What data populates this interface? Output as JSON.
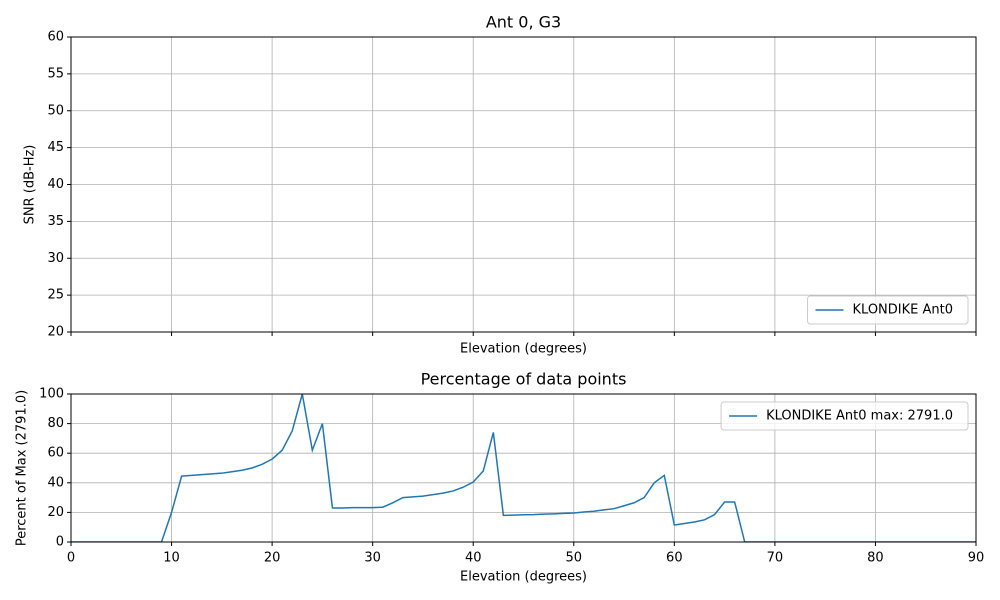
{
  "chart_data": [
    {
      "type": "line",
      "title": "Ant 0, G3",
      "xlabel": "Elevation (degrees)",
      "ylabel": "SNR (dB-Hz)",
      "x": [],
      "series": [
        {
          "name": "KLONDIKE Ant0",
          "color": "#1f77b4",
          "values": []
        }
      ],
      "xlim": [
        0,
        90
      ],
      "xticks": [
        0,
        10,
        20,
        30,
        40,
        50,
        60,
        70,
        80,
        90
      ],
      "xtick_labels": false,
      "ylim": [
        20,
        60
      ],
      "yticks": [
        20,
        25,
        30,
        35,
        40,
        45,
        50,
        55,
        60
      ],
      "grid": true,
      "legend": "lower right"
    },
    {
      "type": "line",
      "title": "Percentage of data points",
      "xlabel": "Elevation (degrees)",
      "ylabel": "Percent of Max (2791.0)",
      "x": [
        0,
        1,
        2,
        3,
        4,
        5,
        6,
        7,
        8,
        9,
        10,
        11,
        12,
        13,
        14,
        15,
        16,
        17,
        18,
        19,
        20,
        21,
        22,
        23,
        24,
        25,
        26,
        27,
        28,
        29,
        30,
        31,
        32,
        33,
        34,
        35,
        36,
        37,
        38,
        39,
        40,
        41,
        42,
        43,
        44,
        45,
        46,
        47,
        48,
        49,
        50,
        51,
        52,
        53,
        54,
        55,
        56,
        57,
        58,
        59,
        60,
        61,
        62,
        63,
        64,
        65,
        66,
        67,
        68,
        69,
        70,
        71,
        72,
        73,
        74,
        75,
        76,
        77,
        78,
        79,
        80,
        81,
        82,
        83,
        84,
        85,
        86,
        87,
        88,
        89,
        90
      ],
      "series": [
        {
          "name": "KLONDIKE Ant0 max: 2791.0",
          "color": "#1f77b4",
          "values": [
            0,
            0,
            0,
            0,
            0,
            0,
            0,
            0,
            0,
            0,
            20,
            44.5,
            45,
            45.5,
            46,
            46.5,
            47.5,
            48.5,
            50,
            52.5,
            56,
            62,
            75,
            100,
            62,
            80,
            23,
            23,
            23.2,
            23.2,
            23.2,
            23.5,
            26.5,
            30,
            30.5,
            31,
            32,
            33,
            34.5,
            37,
            40.5,
            48,
            74,
            18,
            18.2,
            18.4,
            18.5,
            18.8,
            19,
            19.3,
            19.6,
            20.3,
            20.8,
            21.7,
            22.5,
            24.5,
            26.5,
            30,
            40,
            45,
            11.5,
            12.5,
            13.5,
            15,
            18.5,
            27,
            27,
            0,
            0,
            0,
            0,
            0,
            0,
            0,
            0,
            0,
            0,
            0,
            0,
            0,
            0,
            0,
            0,
            0,
            0,
            0,
            0,
            0,
            0,
            0,
            0
          ]
        }
      ],
      "xlim": [
        0,
        90
      ],
      "xticks": [
        0,
        10,
        20,
        30,
        40,
        50,
        60,
        70,
        80,
        90
      ],
      "xtick_labels": true,
      "ylim": [
        0,
        100
      ],
      "yticks": [
        0,
        20,
        40,
        60,
        80,
        100
      ],
      "grid": true,
      "legend": "upper right"
    }
  ]
}
